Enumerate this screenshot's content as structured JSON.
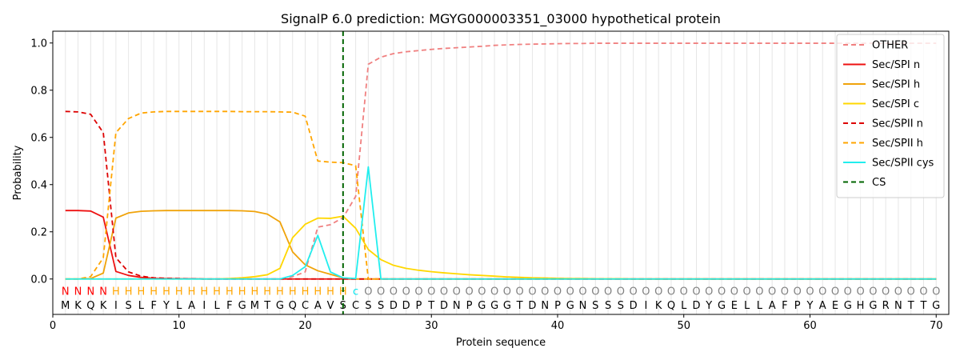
{
  "chart_data": {
    "type": "line",
    "title": "SignalP 6.0 prediction: MGYG000003351_03000 hypothetical protein",
    "xlabel": "Protein sequence",
    "ylabel": "Probability",
    "xlim": [
      0,
      71
    ],
    "ylim": [
      -0.15,
      1.05
    ],
    "x_ticks": [
      0,
      10,
      20,
      30,
      40,
      50,
      60,
      70
    ],
    "y_ticks": [
      0.0,
      0.2,
      0.4,
      0.6,
      0.8,
      1.0
    ],
    "grid": "vertical lines at every residue",
    "legend_position": "top-right",
    "sequence": [
      "M",
      "K",
      "Q",
      "K",
      "I",
      "S",
      "L",
      "F",
      "Y",
      "L",
      "A",
      "I",
      "L",
      "F",
      "G",
      "M",
      "T",
      "G",
      "Q",
      "C",
      "A",
      "V",
      "S",
      "C",
      "S",
      "S",
      "D",
      "D",
      "P",
      "T",
      "D",
      "N",
      "P",
      "G",
      "G",
      "G",
      "T",
      "D",
      "N",
      "P",
      "G",
      "N",
      "S",
      "S",
      "S",
      "D",
      "I",
      "K",
      "Q",
      "L",
      "D",
      "Y",
      "G",
      "E",
      "L",
      "L",
      "A",
      "F",
      "P",
      "Y",
      "A",
      "E",
      "G",
      "H",
      "G",
      "R",
      "N",
      "T",
      "T",
      "G"
    ],
    "labels": [
      "N",
      "N",
      "N",
      "N",
      "H",
      "H",
      "H",
      "H",
      "H",
      "H",
      "H",
      "H",
      "H",
      "H",
      "H",
      "H",
      "H",
      "H",
      "H",
      "H",
      "H",
      "H",
      "H",
      "c",
      "O",
      "O",
      "O",
      "O",
      "O",
      "O",
      "O",
      "O",
      "O",
      "O",
      "O",
      "O",
      "O",
      "O",
      "O",
      "O",
      "O",
      "O",
      "O",
      "O",
      "O",
      "O",
      "O",
      "O",
      "O",
      "O",
      "O",
      "O",
      "O",
      "O",
      "O",
      "O",
      "O",
      "O",
      "O",
      "O",
      "O",
      "O",
      "O",
      "O",
      "O",
      "O",
      "O",
      "O",
      "O",
      "O"
    ],
    "label_colors": {
      "N": "#ff0000",
      "H": "#ffa500",
      "c": "#00e5ee",
      "O": "#808080"
    },
    "cleavage_site": 23,
    "series": [
      {
        "name": "OTHER",
        "color": "#f08080",
        "dash": "dashed",
        "values": [
          0,
          0,
          0,
          0,
          0,
          0,
          0,
          0,
          0,
          0,
          0,
          0,
          0,
          0,
          0,
          0,
          0,
          0,
          0.01,
          0.03,
          0.22,
          0.23,
          0.26,
          0.35,
          0.91,
          0.94,
          0.955,
          0.963,
          0.968,
          0.973,
          0.977,
          0.98,
          0.983,
          0.986,
          0.99,
          0.992,
          0.994,
          0.995,
          0.996,
          0.997,
          0.998,
          0.998,
          0.999,
          0.999,
          0.999,
          0.999,
          0.999,
          0.999,
          0.999,
          0.999,
          0.999,
          0.999,
          0.999,
          0.999,
          0.999,
          0.999,
          0.999,
          0.999,
          0.999,
          0.999,
          0.999,
          0.999,
          0.999,
          0.999,
          0.999,
          0.999,
          0.999,
          0.999,
          0.999,
          0.999
        ]
      },
      {
        "name": "Sec/SPI n",
        "color": "#ee1111",
        "dash": "solid",
        "values": [
          0.29,
          0.29,
          0.288,
          0.262,
          0.032,
          0.015,
          0.007,
          0.003,
          0.002,
          0.001,
          0.001,
          0,
          0,
          0,
          0,
          0,
          0,
          0,
          0,
          0,
          0,
          0,
          0,
          0,
          0,
          0,
          0,
          0,
          0,
          0,
          0,
          0,
          0,
          0,
          0,
          0,
          0,
          0,
          0,
          0,
          0,
          0,
          0,
          0,
          0,
          0,
          0,
          0,
          0,
          0,
          0,
          0,
          0,
          0,
          0,
          0,
          0,
          0,
          0,
          0,
          0,
          0,
          0,
          0,
          0,
          0,
          0,
          0,
          0,
          0
        ]
      },
      {
        "name": "Sec/SPI h",
        "color": "#f0a30a",
        "dash": "solid",
        "values": [
          0,
          0,
          0.002,
          0.025,
          0.258,
          0.28,
          0.287,
          0.289,
          0.29,
          0.29,
          0.29,
          0.29,
          0.29,
          0.29,
          0.289,
          0.286,
          0.275,
          0.242,
          0.115,
          0.06,
          0.035,
          0.02,
          0.005,
          0,
          0,
          0,
          0,
          0,
          0,
          0,
          0,
          0,
          0,
          0,
          0,
          0,
          0,
          0,
          0,
          0,
          0,
          0,
          0,
          0,
          0,
          0,
          0,
          0,
          0,
          0,
          0,
          0,
          0,
          0,
          0,
          0,
          0,
          0,
          0,
          0,
          0,
          0,
          0,
          0,
          0,
          0,
          0,
          0,
          0,
          0
        ]
      },
      {
        "name": "Sec/SPI c",
        "color": "#ffd700",
        "dash": "solid",
        "values": [
          0,
          0,
          0,
          0,
          0,
          0,
          0,
          0,
          0,
          0,
          0,
          0,
          0,
          0.002,
          0.005,
          0.01,
          0.018,
          0.045,
          0.175,
          0.232,
          0.258,
          0.257,
          0.266,
          0.215,
          0.125,
          0.082,
          0.058,
          0.045,
          0.037,
          0.031,
          0.026,
          0.022,
          0.018,
          0.015,
          0.012,
          0.009,
          0.007,
          0.005,
          0.004,
          0.003,
          0.002,
          0.002,
          0.001,
          0.001,
          0.001,
          0,
          0,
          0,
          0,
          0,
          0,
          0,
          0,
          0,
          0,
          0,
          0,
          0,
          0,
          0,
          0,
          0,
          0,
          0,
          0,
          0,
          0,
          0,
          0,
          0
        ]
      },
      {
        "name": "Sec/SPII n",
        "color": "#dd0000",
        "dash": "dashed",
        "values": [
          0.71,
          0.708,
          0.698,
          0.62,
          0.09,
          0.03,
          0.012,
          0.005,
          0.003,
          0.002,
          0.001,
          0,
          0,
          0,
          0,
          0,
          0,
          0,
          0,
          0,
          0,
          0,
          0,
          0,
          0,
          0,
          0,
          0,
          0,
          0,
          0,
          0,
          0,
          0,
          0,
          0,
          0,
          0,
          0,
          0,
          0,
          0,
          0,
          0,
          0,
          0,
          0,
          0,
          0,
          0,
          0,
          0,
          0,
          0,
          0,
          0,
          0,
          0,
          0,
          0,
          0,
          0,
          0,
          0,
          0,
          0,
          0,
          0,
          0,
          0
        ]
      },
      {
        "name": "Sec/SPII h",
        "color": "#ffa500",
        "dash": "dashed",
        "values": [
          0,
          0,
          0.01,
          0.09,
          0.62,
          0.68,
          0.703,
          0.708,
          0.71,
          0.71,
          0.71,
          0.71,
          0.71,
          0.71,
          0.709,
          0.709,
          0.709,
          0.708,
          0.707,
          0.69,
          0.5,
          0.495,
          0.493,
          0.48,
          0,
          0,
          0,
          0,
          0,
          0,
          0,
          0,
          0,
          0,
          0,
          0,
          0,
          0,
          0,
          0,
          0,
          0,
          0,
          0,
          0,
          0,
          0,
          0,
          0,
          0,
          0,
          0,
          0,
          0,
          0,
          0,
          0,
          0,
          0,
          0,
          0,
          0,
          0,
          0,
          0,
          0,
          0,
          0,
          0,
          0
        ]
      },
      {
        "name": "Sec/SPII cys",
        "color": "#22eeee",
        "dash": "solid",
        "values": [
          0,
          0,
          0,
          0,
          0,
          0,
          0,
          0,
          0,
          0,
          0,
          0,
          0,
          0,
          0,
          0,
          0,
          0,
          0.015,
          0.052,
          0.185,
          0.03,
          0.005,
          0.002,
          0.475,
          0,
          0,
          0,
          0,
          0,
          0,
          0,
          0,
          0,
          0,
          0,
          0,
          0,
          0,
          0,
          0,
          0,
          0,
          0,
          0,
          0,
          0,
          0,
          0,
          0,
          0,
          0,
          0,
          0,
          0,
          0,
          0,
          0,
          0,
          0,
          0,
          0,
          0,
          0,
          0,
          0,
          0,
          0,
          0,
          0
        ]
      },
      {
        "name": "CS",
        "color": "#006400",
        "dash": "dashed",
        "vertical_at": 23
      }
    ]
  }
}
